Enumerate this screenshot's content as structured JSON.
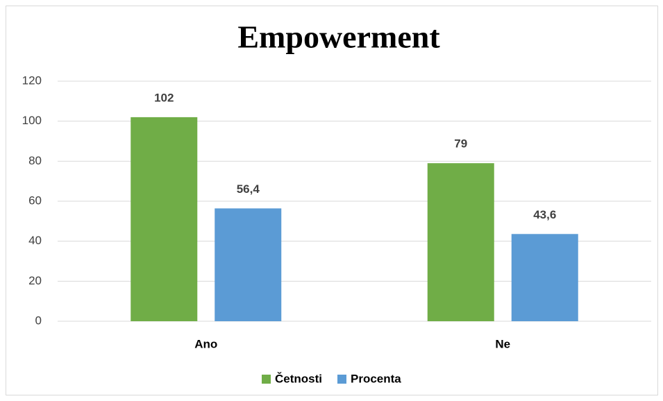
{
  "chart_data": {
    "type": "bar",
    "title": "Empowerment",
    "categories": [
      "Ano",
      "Ne"
    ],
    "series": [
      {
        "name": "Četnosti",
        "color": "#70ad47",
        "values": [
          102,
          79
        ]
      },
      {
        "name": "Procenta",
        "color": "#5b9bd5",
        "values": [
          56.4,
          43.6
        ],
        "value_labels": [
          "56,4",
          "43,6"
        ]
      }
    ],
    "ylim": [
      0,
      120
    ],
    "yticks": [
      0,
      20,
      40,
      60,
      80,
      100,
      120
    ],
    "grid": true,
    "legend": "bottom"
  }
}
